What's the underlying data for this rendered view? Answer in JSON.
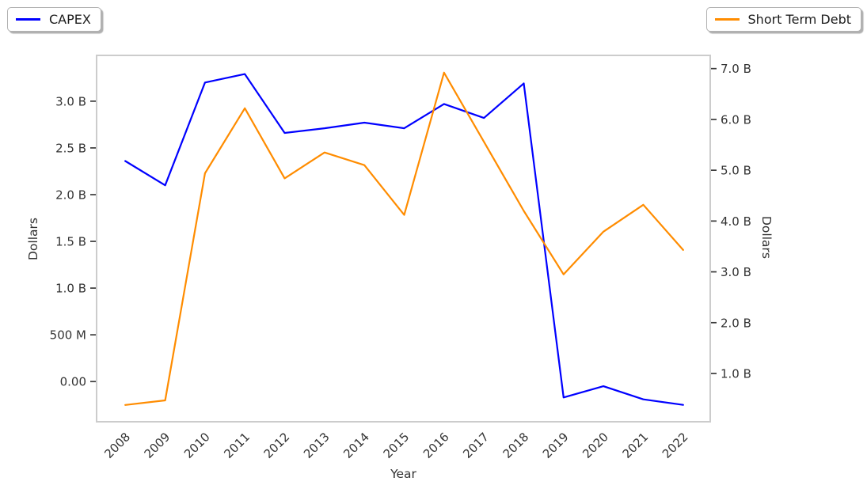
{
  "legend": {
    "capex": {
      "label": "CAPEX"
    },
    "short_term_debt": {
      "label": "Short Term Debt"
    }
  },
  "chart_data": {
    "type": "line",
    "title": "",
    "xlabel": "Year",
    "ylabel_left": "Dollars",
    "ylabel_right": "Dollars",
    "x": [
      2008,
      2009,
      2010,
      2011,
      2012,
      2013,
      2014,
      2015,
      2016,
      2017,
      2018,
      2019,
      2020,
      2021,
      2022
    ],
    "xlim": [
      2007.28,
      2022.68
    ],
    "units": "billions of dollars",
    "grid": false,
    "legend_position": {
      "CAPEX": "top-left-outside",
      "Short Term Debt": "top-right-outside"
    },
    "series": [
      {
        "name": "CAPEX",
        "axis": "left",
        "color": "#0000ff",
        "values": [
          2.36,
          2.1,
          3.2,
          3.29,
          2.66,
          2.71,
          2.77,
          2.71,
          2.97,
          2.82,
          3.19,
          -0.17,
          -0.05,
          -0.19,
          -0.25
        ]
      },
      {
        "name": "Short Term Debt",
        "axis": "right",
        "color": "#ff8c00",
        "values": [
          0.38,
          0.47,
          4.94,
          6.22,
          4.84,
          5.35,
          5.1,
          4.12,
          6.92,
          5.56,
          4.2,
          2.95,
          3.79,
          4.32,
          3.43
        ]
      }
    ],
    "left_axis": {
      "label": "Dollars",
      "range": [
        -0.43,
        3.49
      ],
      "ticks": [
        {
          "value": 0,
          "label": "0.00"
        },
        {
          "value": 0.5,
          "label": "500 M"
        },
        {
          "value": 1,
          "label": "1.0 B"
        },
        {
          "value": 1.5,
          "label": "1.5 B"
        },
        {
          "value": 2,
          "label": "2.0 B"
        },
        {
          "value": 2.5,
          "label": "2.5 B"
        },
        {
          "value": 3,
          "label": "3.0 B"
        }
      ]
    },
    "right_axis": {
      "label": "Dollars",
      "range": [
        0.05,
        7.26
      ],
      "ticks": [
        {
          "value": 1,
          "label": "1.0 B"
        },
        {
          "value": 2,
          "label": "2.0 B"
        },
        {
          "value": 3,
          "label": "3.0 B"
        },
        {
          "value": 4,
          "label": "4.0 B"
        },
        {
          "value": 5,
          "label": "5.0 B"
        },
        {
          "value": 6,
          "label": "6.0 B"
        },
        {
          "value": 7,
          "label": "7.0 B"
        }
      ]
    }
  }
}
